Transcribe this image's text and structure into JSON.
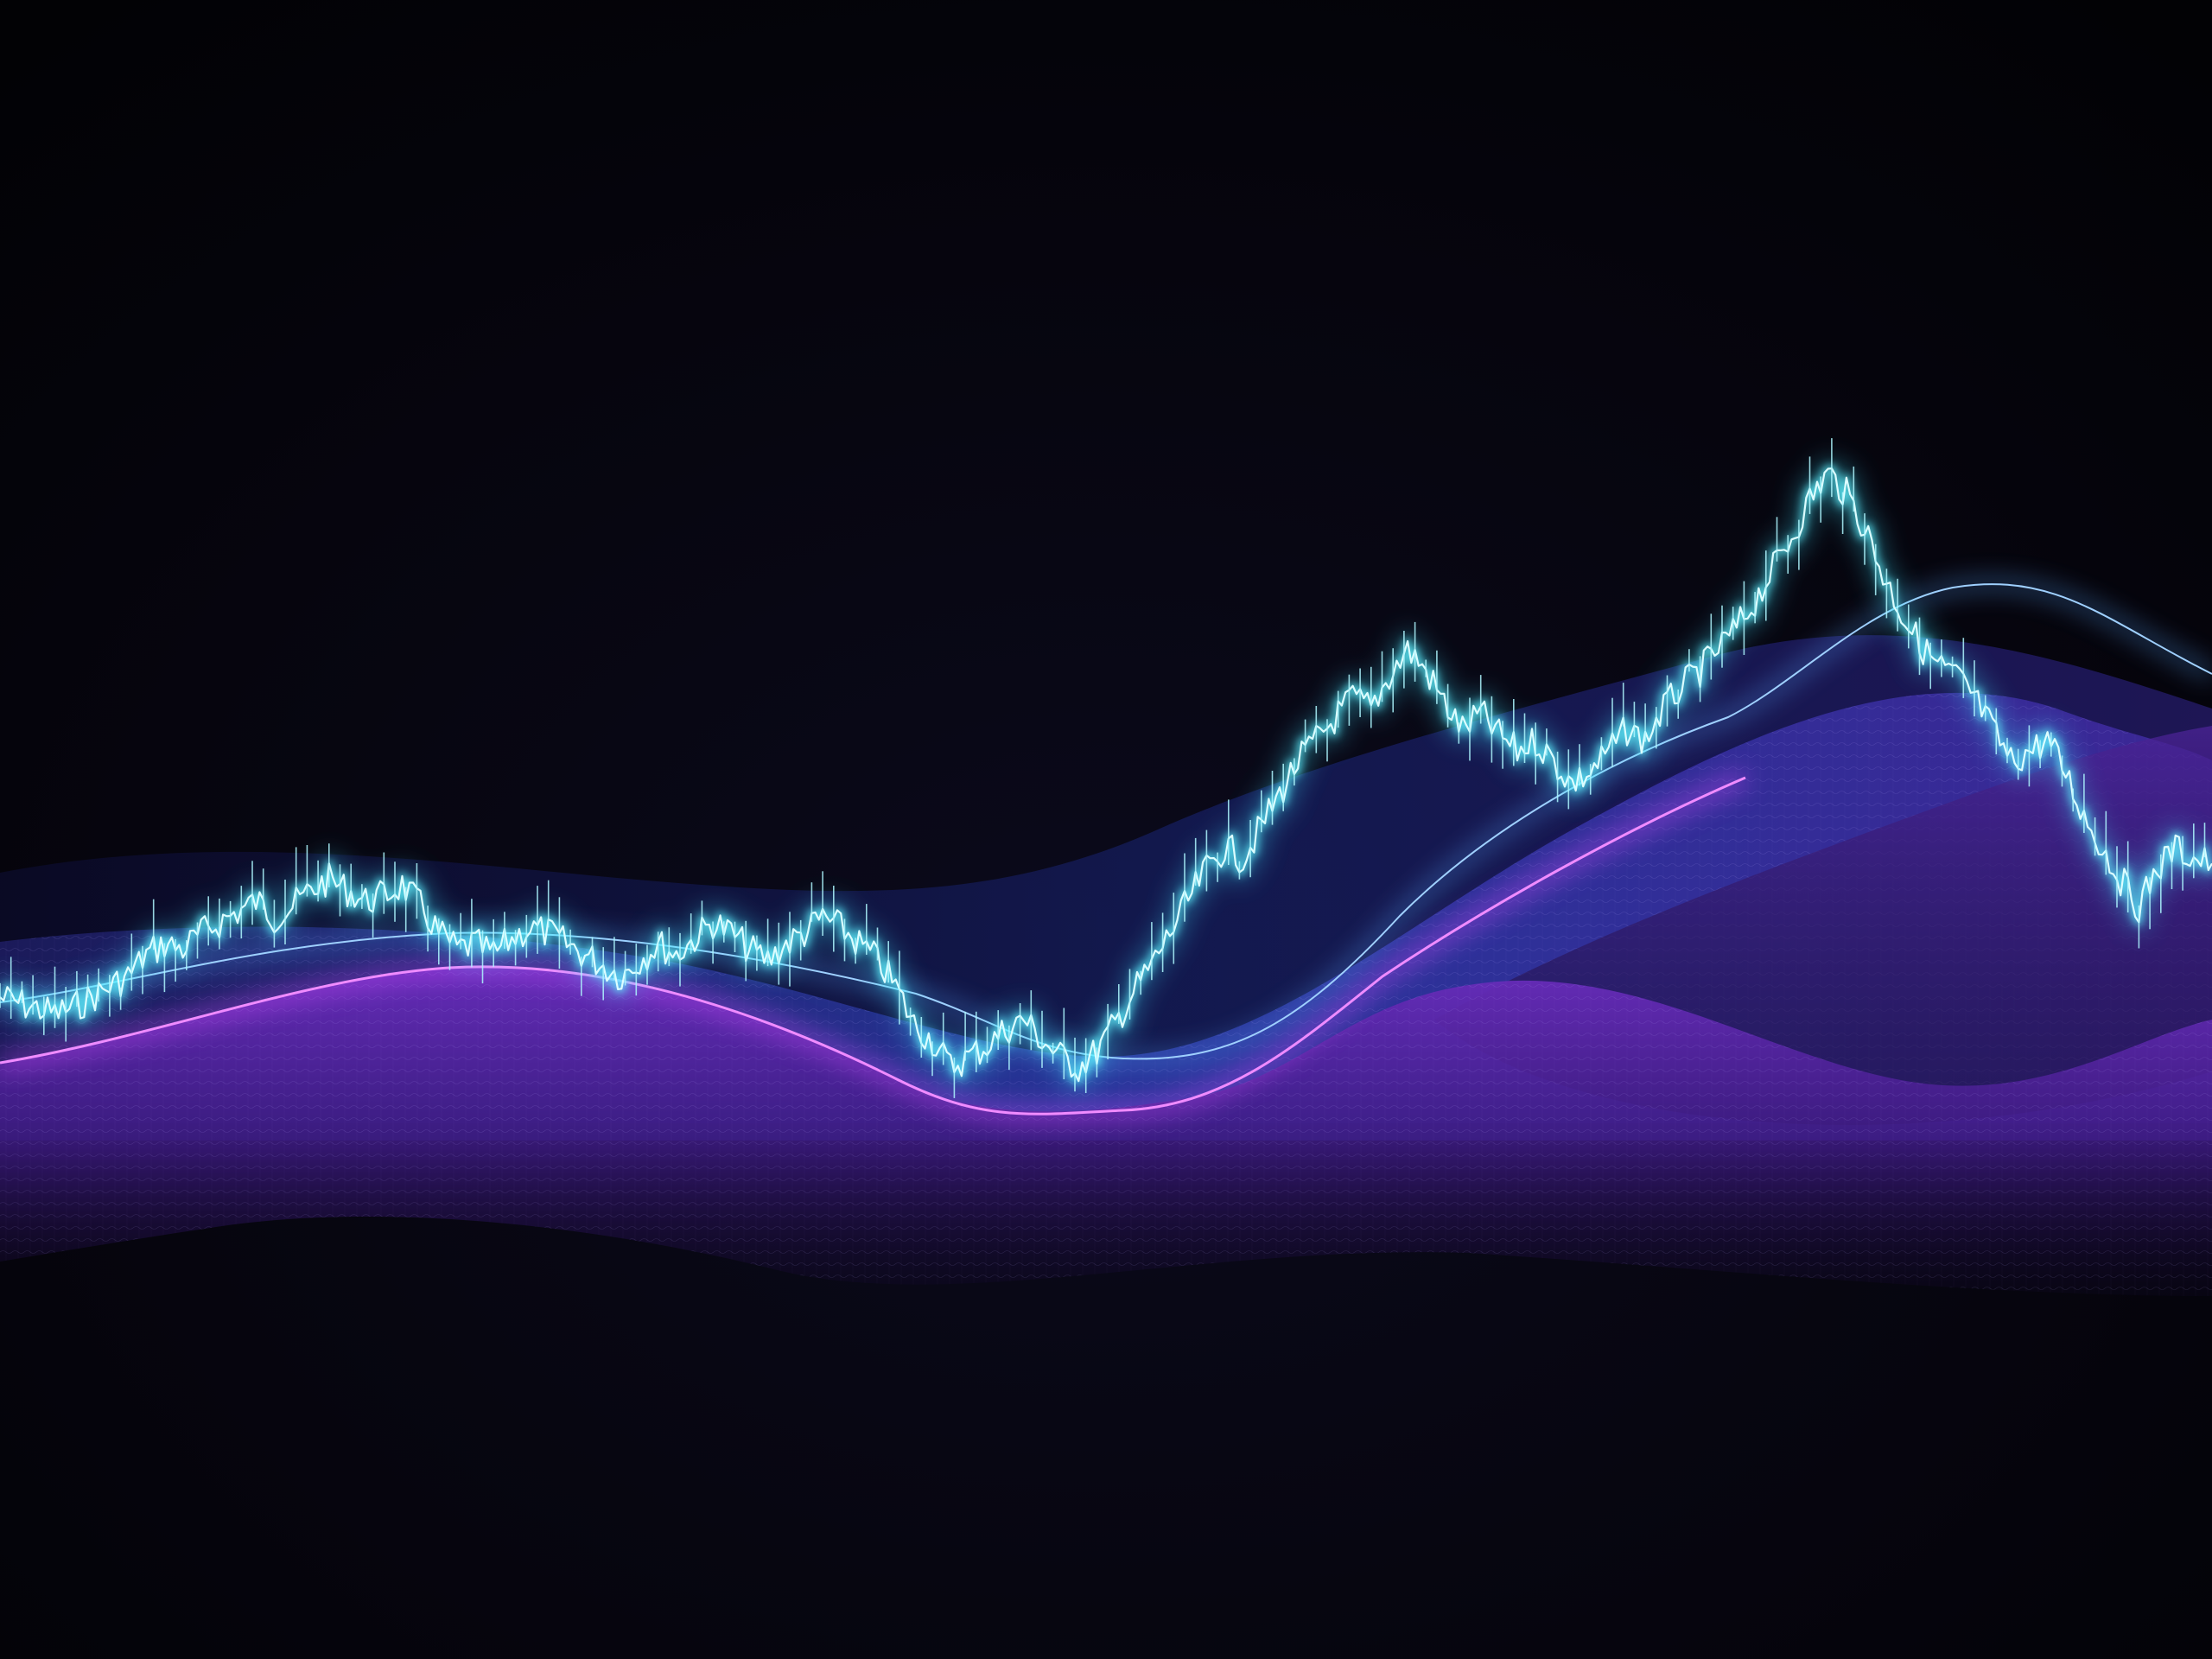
{
  "scene": {
    "colors": {
      "background": "#05040a",
      "glow_cyan": "#5ff2ff",
      "core_cyan": "#dcfdff",
      "blue_line": "#5aa8ff",
      "magenta_line": "#d24bff",
      "front_wave": "#5a1f9e",
      "mid_wave": "#3a3fb8",
      "back_wave": "#1d2a8a"
    },
    "chart_data": {
      "type": "line",
      "series": [
        {
          "values": [
            0.38,
            0.37,
            0.36,
            0.35,
            0.36,
            0.38,
            0.4,
            0.42,
            0.46,
            0.48,
            0.47,
            0.5,
            0.52,
            0.54,
            0.56,
            0.53,
            0.55,
            0.58,
            0.6,
            0.58,
            0.56,
            0.57,
            0.59,
            0.55,
            0.5,
            0.47,
            0.48,
            0.46,
            0.49,
            0.51,
            0.5,
            0.48,
            0.46,
            0.44,
            0.42,
            0.45,
            0.48,
            0.46,
            0.49,
            0.52,
            0.5,
            0.47,
            0.45,
            0.48,
            0.5,
            0.53,
            0.51,
            0.48,
            0.45,
            0.4,
            0.33,
            0.3,
            0.25,
            0.27,
            0.29,
            0.32,
            0.34,
            0.3,
            0.27,
            0.25,
            0.28,
            0.33,
            0.39,
            0.44,
            0.5,
            0.56,
            0.62,
            0.66,
            0.64,
            0.7,
            0.76,
            0.82,
            0.86,
            0.9,
            0.94,
            0.92,
            0.98,
            1.03,
            0.99,
            0.93,
            0.88,
            0.91,
            0.87,
            0.84,
            0.86,
            0.82,
            0.78,
            0.8,
            0.84,
            0.88,
            0.86,
            0.92,
            0.96,
            0.99,
            1.03,
            1.07,
            1.12,
            1.18,
            1.24,
            1.31,
            1.36,
            1.32,
            1.26,
            1.17,
            1.1,
            1.04,
            1.0,
            0.98,
            0.94,
            0.88,
            0.82,
            0.84,
            0.86,
            0.8,
            0.72,
            0.66,
            0.6,
            0.55,
            0.62,
            0.66,
            0.64,
            0.63
          ]
        }
      ]
    }
  }
}
